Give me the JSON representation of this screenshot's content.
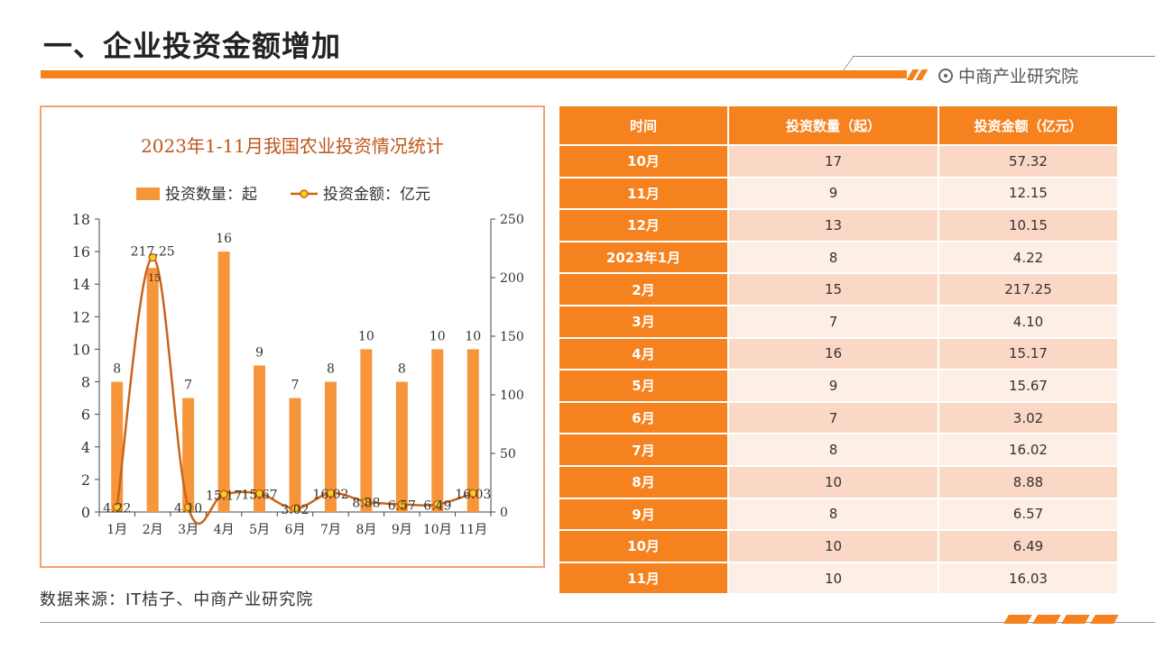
{
  "page": {
    "title": "一、企业投资金额增加",
    "brand": "中商产业研究院",
    "source": "数据来源：IT桔子、中商产业研究院"
  },
  "colors": {
    "accent": "#f5821f",
    "bar": "#f7953a",
    "line": "#c8651a",
    "marker": "#f5d21f",
    "title_text": "#c0561a"
  },
  "chart_data": {
    "type": "bar+line",
    "title": "2023年1-11月我国农业投资情况统计",
    "categories": [
      "1月",
      "2月",
      "3月",
      "4月",
      "5月",
      "6月",
      "7月",
      "8月",
      "9月",
      "10月",
      "11月"
    ],
    "series": [
      {
        "name": "投资数量：起",
        "type": "bar",
        "axis": "left",
        "values": [
          8,
          15,
          7,
          16,
          9,
          7,
          8,
          10,
          8,
          10,
          10
        ],
        "labels": [
          "8",
          "15",
          "7",
          "16",
          "9",
          "7",
          "8",
          "10",
          "8",
          "10",
          "10"
        ]
      },
      {
        "name": "投资金额：亿元",
        "type": "line",
        "axis": "right",
        "values": [
          4.22,
          217.25,
          4.1,
          15.17,
          15.67,
          3.02,
          16.02,
          8.88,
          6.57,
          6.49,
          16.03
        ],
        "labels": [
          "4.22",
          "217.25",
          "4.10",
          "15.17",
          "15.67",
          "3.02",
          "16.02",
          "8.88",
          "6.57",
          "6.49",
          "16.03"
        ]
      }
    ],
    "y_left": {
      "min": 0,
      "max": 18,
      "ticks": [
        "0",
        "2",
        "4",
        "6",
        "8",
        "10",
        "12",
        "14",
        "16",
        "18"
      ]
    },
    "y_right": {
      "min": 0,
      "max": 250,
      "ticks": [
        "0",
        "50",
        "100",
        "150",
        "200",
        "250"
      ]
    },
    "legend_position": "top",
    "grid": false
  },
  "table": {
    "headers": [
      "时间",
      "投资数量（起）",
      "投资金额（亿元）"
    ],
    "rows": [
      [
        "10月",
        "17",
        "57.32"
      ],
      [
        "11月",
        "9",
        "12.15"
      ],
      [
        "12月",
        "13",
        "10.15"
      ],
      [
        "2023年1月",
        "8",
        "4.22"
      ],
      [
        "2月",
        "15",
        "217.25"
      ],
      [
        "3月",
        "7",
        "4.10"
      ],
      [
        "4月",
        "16",
        "15.17"
      ],
      [
        "5月",
        "9",
        "15.67"
      ],
      [
        "6月",
        "7",
        "3.02"
      ],
      [
        "7月",
        "8",
        "16.02"
      ],
      [
        "8月",
        "10",
        "8.88"
      ],
      [
        "9月",
        "8",
        "6.57"
      ],
      [
        "10月",
        "10",
        "6.49"
      ],
      [
        "11月",
        "10",
        "16.03"
      ]
    ]
  }
}
